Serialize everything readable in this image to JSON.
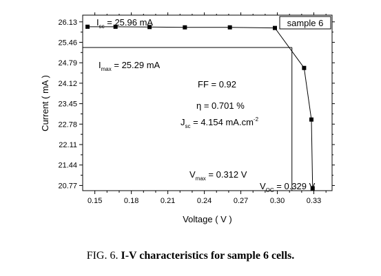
{
  "chart_data": {
    "type": "line",
    "xlabel": "Voltage ( V )",
    "ylabel": "Current ( mA )",
    "xlim": [
      0.14,
      0.345
    ],
    "ylim": [
      20.6,
      26.35
    ],
    "x_ticks": [
      "0.15",
      "0.18",
      "0.21",
      "0.24",
      "0.27",
      "0.30",
      "0.33"
    ],
    "y_ticks": [
      "26.13",
      "25.46",
      "24.79",
      "24.12",
      "23.45",
      "22.78",
      "22.11",
      "21.44",
      "20.77"
    ],
    "series": [
      {
        "name": "sample 6",
        "x": [
          0.144,
          0.167,
          0.195,
          0.224,
          0.261,
          0.298,
          0.322,
          0.328,
          0.329
        ],
        "y": [
          25.97,
          25.97,
          25.96,
          25.95,
          25.95,
          25.93,
          24.62,
          22.93,
          20.68
        ]
      }
    ],
    "legend": {
      "label": "sample 6",
      "position": "top-right"
    },
    "max_power_point": {
      "v": 0.312,
      "i": 25.29
    },
    "annotations": {
      "isc_main": "I",
      "isc_sub": "sc",
      "isc_val": " = 25.96 mA",
      "imax_main": "I",
      "imax_sub": "max",
      "imax_val": " = 25.29 mA",
      "ff": "FF = 0.92",
      "eta": "η = 0.701 %",
      "jsc_main": "J",
      "jsc_sub": "sc",
      "jsc_val": " = 4.154 mA.cm",
      "jsc_sup": "-2",
      "vmax_main": "V",
      "vmax_sub": "max",
      "vmax_val": " = 0.312 V",
      "voc_main": "V",
      "voc_sub": "OC",
      "voc_val": " = 0.329 V"
    }
  },
  "caption": {
    "prefix": "FIG. 6. ",
    "bold": "I-V characteristics for sample 6 cells."
  }
}
